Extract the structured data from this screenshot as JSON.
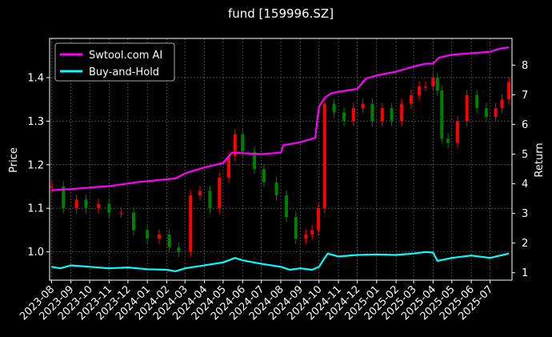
{
  "chart_data": {
    "type": "line",
    "title": "fund [159996.SZ]",
    "ylabel_left": "Price",
    "ylabel_right": "Return",
    "grid": true,
    "legend_position": "top-left",
    "x_ticks": [
      "2023-08",
      "2023-09",
      "2023-10",
      "2023-11",
      "2023-12",
      "2024-01",
      "2024-02",
      "2024-03",
      "2024-04",
      "2024-05",
      "2024-06",
      "2024-07",
      "2024-08",
      "2024-09",
      "2024-10",
      "2024-11",
      "2024-12",
      "2025-01",
      "2025-02",
      "2025-03",
      "2025-04",
      "2025-05",
      "2025-06",
      "2025-07"
    ],
    "y_left_ticks": [
      1.0,
      1.1,
      1.2,
      1.3,
      1.4
    ],
    "y_left_range": [
      0.935,
      1.49
    ],
    "y_right_ticks": [
      1,
      2,
      3,
      4,
      5,
      6,
      7,
      8
    ],
    "y_right_range": [
      0.75,
      8.9
    ],
    "price_series": {
      "name": "Price (candlesticks)",
      "up_color": "#ff0000",
      "down_color": "#008000",
      "x": [
        "2023-08-01",
        "2023-08-20",
        "2023-09-10",
        "2023-09-25",
        "2023-10-15",
        "2023-11-01",
        "2023-11-20",
        "2023-12-10",
        "2024-01-01",
        "2024-01-20",
        "2024-02-05",
        "2024-02-20",
        "2024-03-10",
        "2024-03-25",
        "2024-04-10",
        "2024-04-25",
        "2024-05-10",
        "2024-05-20",
        "2024-06-01",
        "2024-06-20",
        "2024-07-05",
        "2024-07-25",
        "2024-08-10",
        "2024-08-25",
        "2024-09-10",
        "2024-09-20",
        "2024-09-30",
        "2024-10-10",
        "2024-10-25",
        "2024-11-10",
        "2024-11-25",
        "2024-12-10",
        "2024-12-25",
        "2025-01-10",
        "2025-01-25",
        "2025-02-10",
        "2025-02-25",
        "2025-03-10",
        "2025-03-20",
        "2025-04-01",
        "2025-04-08",
        "2025-04-15",
        "2025-04-25",
        "2025-05-10",
        "2025-05-25",
        "2025-06-10",
        "2025-06-25",
        "2025-07-10",
        "2025-07-20",
        "2025-07-31"
      ],
      "y": [
        1.15,
        1.1,
        1.12,
        1.1,
        1.11,
        1.09,
        1.09,
        1.05,
        1.03,
        1.04,
        1.01,
        1.0,
        1.13,
        1.14,
        1.1,
        1.17,
        1.22,
        1.27,
        1.23,
        1.19,
        1.16,
        1.13,
        1.08,
        1.03,
        1.04,
        1.05,
        1.1,
        1.34,
        1.32,
        1.3,
        1.33,
        1.34,
        1.3,
        1.33,
        1.3,
        1.34,
        1.36,
        1.38,
        1.38,
        1.4,
        1.37,
        1.26,
        1.25,
        1.3,
        1.36,
        1.33,
        1.31,
        1.33,
        1.35,
        1.39
      ]
    },
    "series": [
      {
        "name": "Swtool.com AI",
        "color": "#ff00ff",
        "x": [
          "2023-08-01",
          "2023-09-01",
          "2023-11-01",
          "2023-12-15",
          "2024-02-15",
          "2024-03-01",
          "2024-04-01",
          "2024-04-15",
          "2024-05-01",
          "2024-05-15",
          "2024-07-01",
          "2024-08-01",
          "2024-08-05",
          "2024-09-01",
          "2024-09-25",
          "2024-09-28",
          "2024-10-01",
          "2024-10-10",
          "2024-10-20",
          "2024-11-01",
          "2024-12-01",
          "2024-12-15",
          "2025-01-01",
          "2025-02-01",
          "2025-03-01",
          "2025-03-20",
          "2025-04-01",
          "2025-04-10",
          "2025-05-01",
          "2025-06-01",
          "2025-07-01",
          "2025-07-15",
          "2025-07-31"
        ],
        "values": [
          3.78,
          3.82,
          3.92,
          4.05,
          4.18,
          4.35,
          4.55,
          4.62,
          4.7,
          5.05,
          5.0,
          5.05,
          5.3,
          5.4,
          5.55,
          6.1,
          6.6,
          6.9,
          7.05,
          7.1,
          7.2,
          7.55,
          7.65,
          7.78,
          7.95,
          8.05,
          8.05,
          8.25,
          8.35,
          8.4,
          8.45,
          8.55,
          8.6
        ]
      },
      {
        "name": "Buy-and-Hold",
        "color": "#00ffff",
        "x": [
          "2023-08-01",
          "2023-08-15",
          "2023-09-01",
          "2023-10-01",
          "2023-11-01",
          "2023-12-01",
          "2024-01-01",
          "2024-02-01",
          "2024-02-15",
          "2024-03-01",
          "2024-04-01",
          "2024-05-01",
          "2024-05-20",
          "2024-06-01",
          "2024-07-01",
          "2024-08-01",
          "2024-08-15",
          "2024-09-01",
          "2024-09-20",
          "2024-10-01",
          "2024-10-10",
          "2024-10-15",
          "2024-11-01",
          "2024-12-01",
          "2025-01-01",
          "2025-02-01",
          "2025-03-01",
          "2025-03-20",
          "2025-04-01",
          "2025-04-08",
          "2025-05-01",
          "2025-06-01",
          "2025-07-01",
          "2025-07-31"
        ],
        "values": [
          1.2,
          1.15,
          1.25,
          1.2,
          1.15,
          1.18,
          1.12,
          1.1,
          1.05,
          1.15,
          1.25,
          1.35,
          1.5,
          1.42,
          1.3,
          1.2,
          1.1,
          1.15,
          1.1,
          1.2,
          1.5,
          1.65,
          1.55,
          1.6,
          1.62,
          1.6,
          1.65,
          1.7,
          1.68,
          1.4,
          1.5,
          1.58,
          1.5,
          1.65
        ]
      }
    ]
  }
}
